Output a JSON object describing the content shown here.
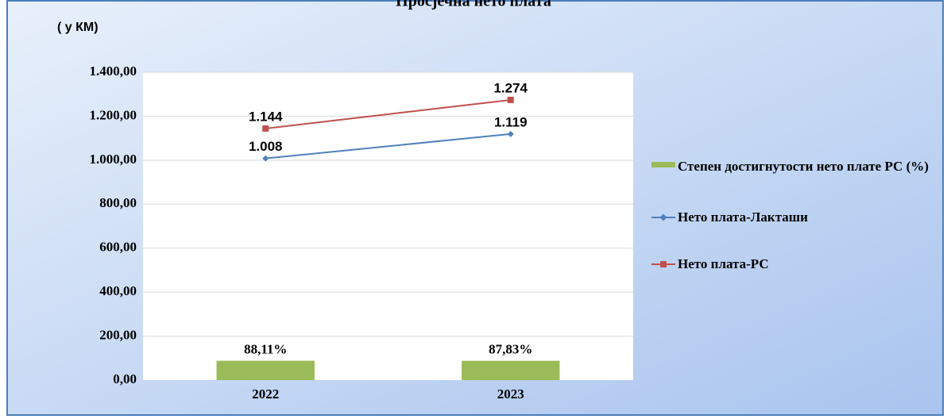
{
  "chart_data": {
    "type": "bar",
    "title": "Просјечна нето плата",
    "y_label": "( у КМ)",
    "categories": [
      "2022",
      "2023"
    ],
    "series": [
      {
        "name": "Степен достигнутости  нето плате РС (%)",
        "type": "bar",
        "color": "#9bbb59",
        "values": [
          88.11,
          87.83
        ],
        "value_labels": [
          "88,11%",
          "87,83%"
        ]
      },
      {
        "name": "Нето плата-Лакташи",
        "type": "line",
        "color": "#4f81bd",
        "values": [
          1008,
          1119
        ],
        "value_labels": [
          "1.008",
          "1.119"
        ]
      },
      {
        "name": "Нето плата-РС",
        "type": "line",
        "color": "#c0504d",
        "values": [
          1144,
          1274
        ],
        "value_labels": [
          "1.144",
          "1.274"
        ]
      }
    ],
    "ylim": [
      0,
      1400
    ],
    "yticks": [
      {
        "value": 0,
        "label": "0,00"
      },
      {
        "value": 200,
        "label": "200,00"
      },
      {
        "value": 400,
        "label": "400,00"
      },
      {
        "value": 600,
        "label": "600,00"
      },
      {
        "value": 800,
        "label": "800,00"
      },
      {
        "value": 1000,
        "label": "1.000,00"
      },
      {
        "value": 1200,
        "label": "1.200,00"
      },
      {
        "value": 1400,
        "label": "1.400,00"
      }
    ],
    "grid": true,
    "legend": "right"
  }
}
